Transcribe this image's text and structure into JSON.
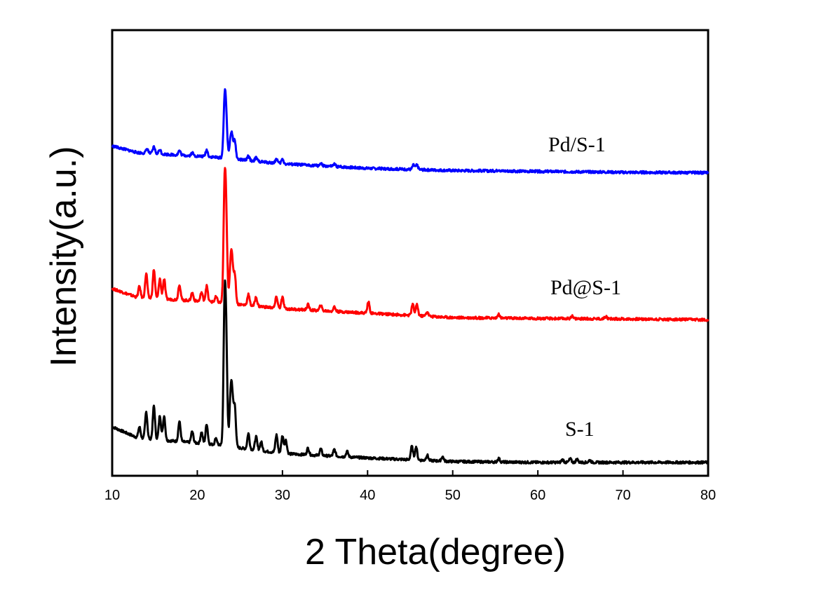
{
  "chart_data": {
    "type": "line",
    "title": "",
    "xlabel": "2 Theta(degree)",
    "ylabel": "Intensity(a.u.)",
    "xlim": [
      10,
      80
    ],
    "xticks": [
      10,
      20,
      30,
      40,
      50,
      60,
      70,
      80
    ],
    "xtick_labels": [
      "10",
      "20",
      "30",
      "40",
      "50",
      "60",
      "70",
      "80"
    ],
    "y_tick_labels_shown": false,
    "grid": false,
    "legend": "none (labels placed beside curves)",
    "ylim": [
      0,
      100
    ],
    "series": [
      {
        "name": "S-1",
        "color": "#000000",
        "baseline": 11,
        "base_points": [
          [
            10,
            11
          ],
          [
            13,
            8.5
          ],
          [
            22,
            7
          ],
          [
            30,
            5
          ],
          [
            40,
            4
          ],
          [
            50,
            3.2
          ],
          [
            60,
            3
          ],
          [
            70,
            3
          ],
          [
            80,
            3
          ]
        ],
        "peaks": [
          [
            13.2,
            2.5
          ],
          [
            14,
            6
          ],
          [
            14.9,
            7.5
          ],
          [
            15.6,
            5.5
          ],
          [
            16.1,
            5.5
          ],
          [
            17.9,
            4.5
          ],
          [
            19.4,
            2.5
          ],
          [
            20.5,
            2.5
          ],
          [
            21.1,
            4.5
          ],
          [
            22.2,
            1.5
          ],
          [
            23.2,
            29
          ],
          [
            23.4,
            20
          ],
          [
            23.9,
            10
          ],
          [
            24.1,
            10
          ],
          [
            24.4,
            9
          ],
          [
            26,
            3.5
          ],
          [
            26.9,
            3
          ],
          [
            27.5,
            2
          ],
          [
            29.3,
            4
          ],
          [
            30,
            4
          ],
          [
            30.4,
            3
          ],
          [
            33,
            1.5
          ],
          [
            34.5,
            1.5
          ],
          [
            36.1,
            1.5
          ],
          [
            37.6,
            1.2
          ],
          [
            45.2,
            3
          ],
          [
            45.7,
            3
          ],
          [
            47,
            1.2
          ],
          [
            48.8,
            1
          ],
          [
            55.4,
            0.8
          ],
          [
            62.9,
            0.6
          ],
          [
            63.8,
            0.8
          ],
          [
            64.6,
            0.7
          ],
          [
            66.1,
            0.5
          ]
        ]
      },
      {
        "name": "Pd@S-1",
        "color": "#ff0000",
        "baseline": 42,
        "base_points": [
          [
            10,
            42
          ],
          [
            13,
            40
          ],
          [
            22,
            39
          ],
          [
            30,
            37.5
          ],
          [
            40,
            36.5
          ],
          [
            50,
            35.5
          ],
          [
            60,
            35.3
          ],
          [
            70,
            35.2
          ],
          [
            80,
            35
          ]
        ],
        "peaks": [
          [
            13.2,
            2.5
          ],
          [
            14,
            5.5
          ],
          [
            14.9,
            6.5
          ],
          [
            15.6,
            4.5
          ],
          [
            16.1,
            4.5
          ],
          [
            17.9,
            3.5
          ],
          [
            19.4,
            1.8
          ],
          [
            20.5,
            2
          ],
          [
            21.1,
            3.5
          ],
          [
            22.2,
            1.2
          ],
          [
            23.2,
            24
          ],
          [
            23.4,
            16
          ],
          [
            23.9,
            8
          ],
          [
            24.1,
            8
          ],
          [
            24.4,
            6.5
          ],
          [
            26,
            2.5
          ],
          [
            26.9,
            2
          ],
          [
            29.3,
            2.5
          ],
          [
            30,
            2.5
          ],
          [
            33,
            1.2
          ],
          [
            34.5,
            1.2
          ],
          [
            36.1,
            1
          ],
          [
            40.1,
            2.5
          ],
          [
            45.3,
            2.5
          ],
          [
            45.8,
            2.5
          ],
          [
            47,
            1
          ],
          [
            55.4,
            0.8
          ],
          [
            64,
            0.6
          ],
          [
            68,
            0.6
          ]
        ]
      },
      {
        "name": "Pd/S-1",
        "color": "#0000ff",
        "baseline": 74,
        "base_points": [
          [
            10,
            74
          ],
          [
            13,
            72.5
          ],
          [
            22,
            71.5
          ],
          [
            30,
            70
          ],
          [
            40,
            69
          ],
          [
            50,
            68.5
          ],
          [
            60,
            68.3
          ],
          [
            70,
            68.1
          ],
          [
            80,
            68
          ]
        ],
        "peaks": [
          [
            14.1,
            1
          ],
          [
            14.9,
            1.5
          ],
          [
            15.6,
            1
          ],
          [
            17.9,
            1
          ],
          [
            19.4,
            0.7
          ],
          [
            21.1,
            1.5
          ],
          [
            23.2,
            12
          ],
          [
            23.4,
            8
          ],
          [
            23.9,
            4
          ],
          [
            24.1,
            4
          ],
          [
            24.4,
            4
          ],
          [
            26,
            1
          ],
          [
            26.9,
            0.8
          ],
          [
            29.3,
            1
          ],
          [
            30,
            1
          ],
          [
            34.5,
            0.5
          ],
          [
            36.1,
            0.5
          ],
          [
            45.4,
            1
          ],
          [
            45.8,
            1
          ],
          [
            55.4,
            0.3
          ]
        ]
      }
    ]
  },
  "series_labels": {
    "s1": "S-1",
    "pd_at": "Pd@S-1",
    "pd_slash": "Pd/S-1"
  }
}
